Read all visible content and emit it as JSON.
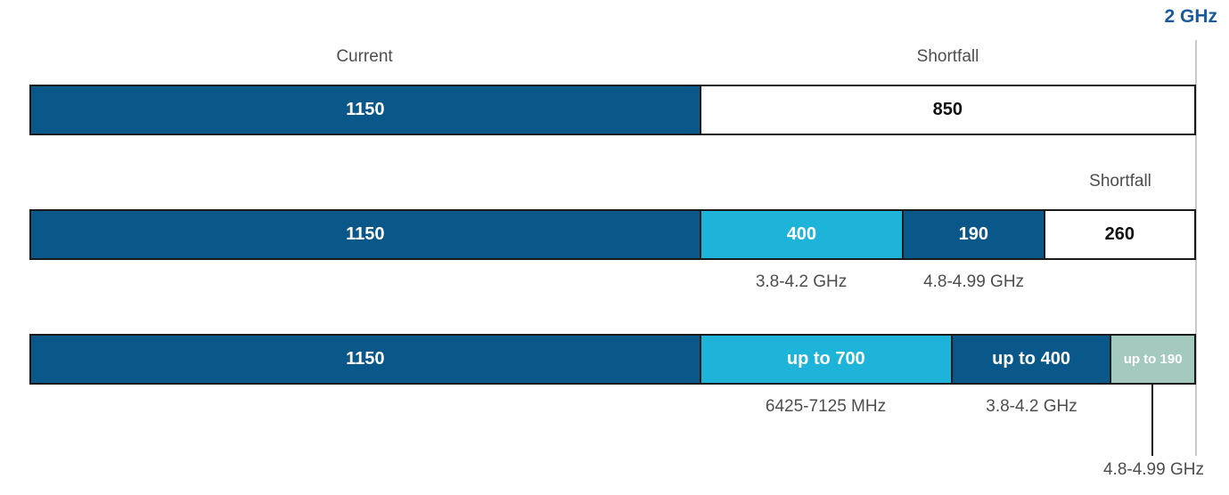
{
  "colors": {
    "dark": "#0a5789",
    "cyan": "#1eb4d9",
    "sage": "#a4c9bf",
    "white": "#ffffff",
    "value_text_on_color": "#ffffff",
    "value_text_on_white": "#111111",
    "label_gray": "#4d4d4d",
    "border_black": "#1a1a1a",
    "axis_line_gray": "#c9c9c9",
    "accent_blue": "#1b5a9b"
  },
  "chart_data": {
    "type": "bar",
    "orientation": "horizontal-stacked",
    "unit": "MHz",
    "axis_max_mhz": 2000,
    "axis_marker": {
      "label": "2 GHz",
      "value_mhz": 2000
    },
    "legend_position": "none",
    "grid": "single 2 GHz target gridline at right edge of bars",
    "rows": [
      {
        "name": "current-vs-shortfall",
        "segments": [
          {
            "label": "1150",
            "value_mhz": 1150,
            "color": "dark",
            "width_pct": 57.45,
            "top_label": "Current"
          },
          {
            "label": "850",
            "value_mhz": 850,
            "color": "white",
            "width_pct": 42.55,
            "top_label": "Shortfall"
          }
        ]
      },
      {
        "name": "with-identified-midband",
        "segments": [
          {
            "label": "1150",
            "value_mhz": 1150,
            "color": "dark",
            "width_pct": 57.45
          },
          {
            "label": "400",
            "value_mhz": 400,
            "color": "cyan",
            "width_pct": 17.42,
            "band_label": "3.8-4.2 GHz"
          },
          {
            "label": "190",
            "value_mhz": 190,
            "color": "dark",
            "width_pct": 12.15,
            "band_label": "4.8-4.99 GHz"
          },
          {
            "label": "260",
            "value_mhz": 260,
            "color": "white",
            "width_pct": 12.98,
            "top_label": "Shortfall"
          }
        ]
      },
      {
        "name": "potential-additions",
        "segments": [
          {
            "label": "1150",
            "value_mhz": 1150,
            "color": "dark",
            "width_pct": 57.45
          },
          {
            "label": "up to 700",
            "value_mhz": 700,
            "color": "cyan",
            "width_pct": 21.62,
            "band_label": "6425-7125 MHz"
          },
          {
            "label": "up to 400",
            "value_mhz": 400,
            "color": "dark",
            "width_pct": 13.67,
            "band_label": "3.8-4.2 GHz"
          },
          {
            "label": "up to 190",
            "value_mhz": 190,
            "color": "sage",
            "width_pct": 7.26,
            "band_label": "4.8-4.99 GHz",
            "band_label_callout": true
          }
        ]
      }
    ]
  }
}
